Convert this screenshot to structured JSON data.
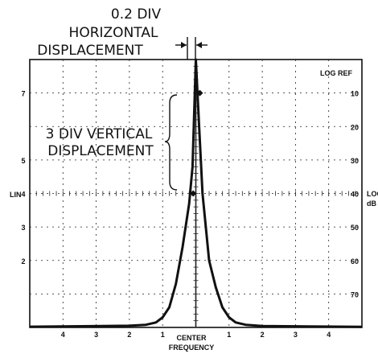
{
  "annotations": {
    "horizontal": [
      "0.2 DIV",
      "HORIZONTAL",
      "DISPLACEMENT"
    ],
    "vertical": [
      "3 DIV VERTICAL",
      "DISPLACEMENT"
    ]
  },
  "axes": {
    "left_label": "LIN",
    "right_top_label": "LOG REF",
    "right_label": [
      "LOG",
      "dB"
    ],
    "bottom_label": [
      "CENTER",
      "FREQUENCY"
    ],
    "left_ticks": [
      "7",
      "5",
      "4",
      "3",
      "2"
    ],
    "right_ticks": [
      "10",
      "20",
      "30",
      "40",
      "50",
      "60",
      "70"
    ],
    "bottom_ticks": [
      "4",
      "3",
      "2",
      "1",
      "1",
      "2",
      "3",
      "4"
    ]
  },
  "chart_data": {
    "type": "line",
    "grid": true,
    "x_divisions": 10,
    "y_divisions": 8,
    "center_x": 5,
    "peak": {
      "x": 5,
      "y": 8
    },
    "markers": [
      {
        "x": 5.12,
        "y": 7
      },
      {
        "x": 4.92,
        "y": 4
      }
    ],
    "curve": [
      [
        0,
        0.02
      ],
      [
        3.0,
        0.05
      ],
      [
        3.5,
        0.08
      ],
      [
        3.8,
        0.15
      ],
      [
        4.0,
        0.3
      ],
      [
        4.2,
        0.6
      ],
      [
        4.4,
        1.3
      ],
      [
        4.6,
        2.4
      ],
      [
        4.8,
        3.7
      ],
      [
        4.9,
        4.8
      ],
      [
        5.0,
        8
      ],
      [
        5.1,
        6.0
      ],
      [
        5.2,
        4.0
      ],
      [
        5.4,
        2.0
      ],
      [
        5.6,
        1.2
      ],
      [
        5.8,
        0.6
      ],
      [
        6.0,
        0.3
      ],
      [
        6.2,
        0.15
      ],
      [
        6.5,
        0.08
      ],
      [
        7.0,
        0.04
      ],
      [
        10,
        0.02
      ]
    ]
  }
}
